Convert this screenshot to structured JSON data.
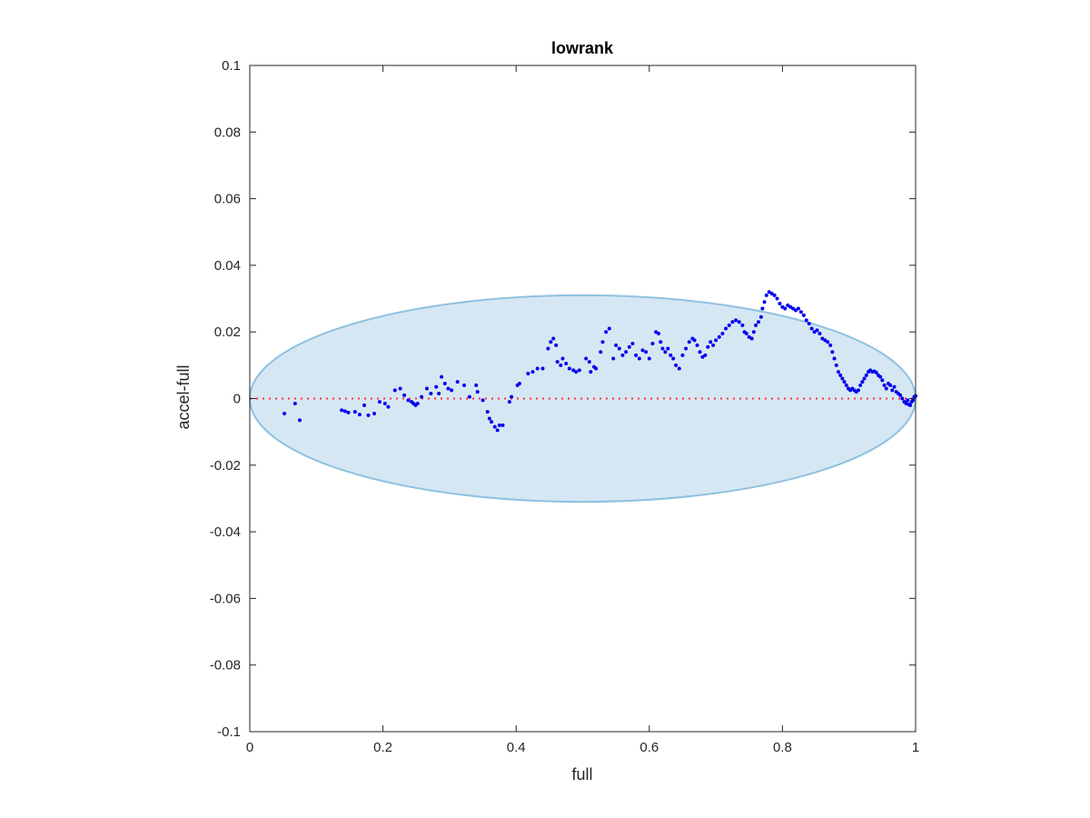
{
  "chart_data": {
    "type": "scatter",
    "title": "lowrank",
    "xlabel": "full",
    "ylabel": "accel-full",
    "xlim": [
      0,
      1
    ],
    "ylim": [
      -0.1,
      0.1
    ],
    "xticks": [
      0,
      0.2,
      0.4,
      0.6,
      0.8,
      1
    ],
    "xtick_labels": [
      "0",
      "0.2",
      "0.4",
      "0.6",
      "0.8",
      "1"
    ],
    "yticks": [
      -0.1,
      -0.08,
      -0.06,
      -0.04,
      -0.02,
      0,
      0.02,
      0.04,
      0.06,
      0.08,
      0.1
    ],
    "ytick_labels": [
      "-0.1",
      "-0.08",
      "-0.06",
      "-0.04",
      "-0.02",
      "0",
      "0.02",
      "0.04",
      "0.06",
      "0.08",
      "0.1"
    ],
    "grid": false,
    "colors": {
      "points": "#0000ee",
      "ellipse_fill": "#d6e7f4",
      "ellipse_edge": "#8fc1e0",
      "zero_line": "#ff3333",
      "axes": "#262626"
    },
    "ellipse": {
      "center": [
        0.5,
        0
      ],
      "x_semi_axis": 0.5,
      "y_semi_axis": 0.031
    },
    "reference_line": {
      "y": 0,
      "style": "dotted"
    },
    "points": [
      [
        0.052,
        -0.0045
      ],
      [
        0.068,
        -0.0015
      ],
      [
        0.075,
        -0.0065
      ],
      [
        0.138,
        -0.0035
      ],
      [
        0.143,
        -0.0038
      ],
      [
        0.148,
        -0.0042
      ],
      [
        0.158,
        -0.004
      ],
      [
        0.165,
        -0.0048
      ],
      [
        0.172,
        -0.002
      ],
      [
        0.178,
        -0.005
      ],
      [
        0.187,
        -0.0045
      ],
      [
        0.195,
        -0.001
      ],
      [
        0.203,
        -0.0015
      ],
      [
        0.208,
        -0.0025
      ],
      [
        0.218,
        0.0025
      ],
      [
        0.226,
        0.003
      ],
      [
        0.232,
        0.001
      ],
      [
        0.238,
        -0.0005
      ],
      [
        0.243,
        -0.001
      ],
      [
        0.246,
        -0.0015
      ],
      [
        0.249,
        -0.002
      ],
      [
        0.252,
        -0.0015
      ],
      [
        0.258,
        0.0005
      ],
      [
        0.266,
        0.003
      ],
      [
        0.272,
        0.0015
      ],
      [
        0.28,
        0.0035
      ],
      [
        0.284,
        0.0015
      ],
      [
        0.288,
        0.0065
      ],
      [
        0.293,
        0.0045
      ],
      [
        0.298,
        0.003
      ],
      [
        0.303,
        0.0025
      ],
      [
        0.312,
        0.005
      ],
      [
        0.322,
        0.004
      ],
      [
        0.33,
        0.0005
      ],
      [
        0.34,
        0.004
      ],
      [
        0.342,
        0.002
      ],
      [
        0.35,
        -0.0005
      ],
      [
        0.357,
        -0.004
      ],
      [
        0.36,
        -0.006
      ],
      [
        0.363,
        -0.007
      ],
      [
        0.368,
        -0.0085
      ],
      [
        0.372,
        -0.0095
      ],
      [
        0.375,
        -0.008
      ],
      [
        0.38,
        -0.008
      ],
      [
        0.39,
        -0.001
      ],
      [
        0.393,
        0.0005
      ],
      [
        0.402,
        0.004
      ],
      [
        0.405,
        0.0045
      ],
      [
        0.418,
        0.0075
      ],
      [
        0.425,
        0.008
      ],
      [
        0.432,
        0.009
      ],
      [
        0.44,
        0.009
      ],
      [
        0.448,
        0.015
      ],
      [
        0.452,
        0.017
      ],
      [
        0.456,
        0.018
      ],
      [
        0.46,
        0.016
      ],
      [
        0.462,
        0.011
      ],
      [
        0.467,
        0.01
      ],
      [
        0.47,
        0.012
      ],
      [
        0.475,
        0.0105
      ],
      [
        0.48,
        0.009
      ],
      [
        0.486,
        0.0085
      ],
      [
        0.49,
        0.008
      ],
      [
        0.495,
        0.0085
      ],
      [
        0.505,
        0.012
      ],
      [
        0.51,
        0.011
      ],
      [
        0.512,
        0.008
      ],
      [
        0.517,
        0.0095
      ],
      [
        0.52,
        0.009
      ],
      [
        0.527,
        0.014
      ],
      [
        0.53,
        0.017
      ],
      [
        0.535,
        0.02
      ],
      [
        0.54,
        0.021
      ],
      [
        0.546,
        0.012
      ],
      [
        0.55,
        0.016
      ],
      [
        0.555,
        0.015
      ],
      [
        0.56,
        0.013
      ],
      [
        0.565,
        0.014
      ],
      [
        0.57,
        0.0155
      ],
      [
        0.575,
        0.0165
      ],
      [
        0.58,
        0.013
      ],
      [
        0.585,
        0.012
      ],
      [
        0.59,
        0.0145
      ],
      [
        0.595,
        0.014
      ],
      [
        0.6,
        0.012
      ],
      [
        0.605,
        0.0165
      ],
      [
        0.61,
        0.02
      ],
      [
        0.614,
        0.0195
      ],
      [
        0.617,
        0.017
      ],
      [
        0.62,
        0.015
      ],
      [
        0.624,
        0.014
      ],
      [
        0.628,
        0.015
      ],
      [
        0.632,
        0.013
      ],
      [
        0.636,
        0.012
      ],
      [
        0.64,
        0.01
      ],
      [
        0.645,
        0.009
      ],
      [
        0.65,
        0.013
      ],
      [
        0.655,
        0.015
      ],
      [
        0.66,
        0.017
      ],
      [
        0.665,
        0.018
      ],
      [
        0.668,
        0.0175
      ],
      [
        0.672,
        0.016
      ],
      [
        0.676,
        0.014
      ],
      [
        0.68,
        0.0125
      ],
      [
        0.684,
        0.013
      ],
      [
        0.688,
        0.0155
      ],
      [
        0.692,
        0.017
      ],
      [
        0.696,
        0.016
      ],
      [
        0.7,
        0.0175
      ],
      [
        0.705,
        0.0185
      ],
      [
        0.71,
        0.0195
      ],
      [
        0.715,
        0.021
      ],
      [
        0.72,
        0.022
      ],
      [
        0.725,
        0.023
      ],
      [
        0.73,
        0.0235
      ],
      [
        0.735,
        0.023
      ],
      [
        0.74,
        0.022
      ],
      [
        0.743,
        0.02
      ],
      [
        0.746,
        0.0195
      ],
      [
        0.75,
        0.0185
      ],
      [
        0.754,
        0.018
      ],
      [
        0.757,
        0.02
      ],
      [
        0.76,
        0.022
      ],
      [
        0.764,
        0.023
      ],
      [
        0.768,
        0.0245
      ],
      [
        0.77,
        0.027
      ],
      [
        0.773,
        0.029
      ],
      [
        0.776,
        0.031
      ],
      [
        0.78,
        0.032
      ],
      [
        0.784,
        0.0315
      ],
      [
        0.788,
        0.031
      ],
      [
        0.792,
        0.03
      ],
      [
        0.796,
        0.0285
      ],
      [
        0.8,
        0.0275
      ],
      [
        0.804,
        0.027
      ],
      [
        0.808,
        0.028
      ],
      [
        0.812,
        0.0275
      ],
      [
        0.816,
        0.027
      ],
      [
        0.82,
        0.0265
      ],
      [
        0.824,
        0.027
      ],
      [
        0.828,
        0.026
      ],
      [
        0.832,
        0.025
      ],
      [
        0.836,
        0.0235
      ],
      [
        0.84,
        0.0225
      ],
      [
        0.844,
        0.021
      ],
      [
        0.848,
        0.02
      ],
      [
        0.852,
        0.0205
      ],
      [
        0.856,
        0.0195
      ],
      [
        0.86,
        0.018
      ],
      [
        0.864,
        0.0175
      ],
      [
        0.868,
        0.017
      ],
      [
        0.872,
        0.016
      ],
      [
        0.875,
        0.014
      ],
      [
        0.878,
        0.012
      ],
      [
        0.881,
        0.01
      ],
      [
        0.884,
        0.008
      ],
      [
        0.887,
        0.007
      ],
      [
        0.89,
        0.006
      ],
      [
        0.893,
        0.005
      ],
      [
        0.896,
        0.004
      ],
      [
        0.899,
        0.003
      ],
      [
        0.902,
        0.0025
      ],
      [
        0.905,
        0.003
      ],
      [
        0.908,
        0.0025
      ],
      [
        0.911,
        0.002
      ],
      [
        0.914,
        0.0025
      ],
      [
        0.917,
        0.004
      ],
      [
        0.92,
        0.005
      ],
      [
        0.923,
        0.006
      ],
      [
        0.926,
        0.007
      ],
      [
        0.929,
        0.008
      ],
      [
        0.932,
        0.0085
      ],
      [
        0.935,
        0.008
      ],
      [
        0.938,
        0.0082
      ],
      [
        0.941,
        0.0078
      ],
      [
        0.944,
        0.007
      ],
      [
        0.947,
        0.0065
      ],
      [
        0.95,
        0.0055
      ],
      [
        0.953,
        0.004
      ],
      [
        0.956,
        0.003
      ],
      [
        0.959,
        0.0045
      ],
      [
        0.962,
        0.004
      ],
      [
        0.965,
        0.0025
      ],
      [
        0.968,
        0.0035
      ],
      [
        0.971,
        0.002
      ],
      [
        0.974,
        0.0015
      ],
      [
        0.977,
        0.001
      ],
      [
        0.98,
        0.0
      ],
      [
        0.983,
        -0.001
      ],
      [
        0.986,
        -0.0015
      ],
      [
        0.988,
        -0.0005
      ],
      [
        0.99,
        -0.0018
      ],
      [
        0.992,
        -0.002
      ],
      [
        0.994,
        -0.001
      ],
      [
        0.996,
        -0.0005
      ],
      [
        0.998,
        0.0005
      ],
      [
        1.0,
        0.0008
      ]
    ]
  }
}
